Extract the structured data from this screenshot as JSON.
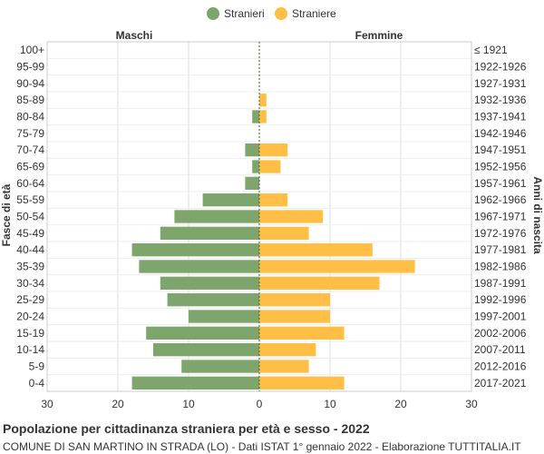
{
  "chart_data": {
    "type": "bar",
    "orientation": "horizontal-butterfly",
    "title": "Popolazione per cittadinanza straniera per età e sesso - 2022",
    "subtitle": "COMUNE DI SAN MARTINO IN STRADA (LO) - Dati ISTAT 1° gennaio 2022 - Elaborazione TUTTITALIA.IT",
    "left_header": "Maschi",
    "right_header": "Femmine",
    "ylabel_left": "Fasce di età",
    "ylabel_right": "Anni di nascita",
    "xlim": [
      -30,
      30
    ],
    "x_ticks": [
      "30",
      "20",
      "10",
      "0",
      "10",
      "20",
      "30"
    ],
    "x_tick_values": [
      -30,
      -20,
      -10,
      0,
      10,
      20,
      30
    ],
    "legend": {
      "position": "top-center",
      "items": [
        "Stranieri",
        "Straniere"
      ]
    },
    "colors": {
      "males": "#7ea56c",
      "females": "#ffbf47",
      "grid": "#dddddd",
      "zero_line": "#4a5a2a"
    },
    "categories": [
      "100+",
      "95-99",
      "90-94",
      "85-89",
      "80-84",
      "75-79",
      "70-74",
      "65-69",
      "60-64",
      "55-59",
      "50-54",
      "45-49",
      "40-44",
      "35-39",
      "30-34",
      "25-29",
      "20-24",
      "15-19",
      "10-14",
      "5-9",
      "0-4"
    ],
    "birth_years": [
      "≤ 1921",
      "1922-1926",
      "1927-1931",
      "1932-1936",
      "1937-1941",
      "1942-1946",
      "1947-1951",
      "1952-1956",
      "1957-1961",
      "1962-1966",
      "1967-1971",
      "1972-1976",
      "1977-1981",
      "1982-1986",
      "1987-1991",
      "1992-1996",
      "1997-2001",
      "2002-2006",
      "2007-2011",
      "2012-2016",
      "2017-2021"
    ],
    "series": [
      {
        "name": "Stranieri",
        "values": [
          0,
          0,
          0,
          0,
          1,
          0,
          2,
          1,
          2,
          8,
          12,
          14,
          18,
          17,
          14,
          13,
          10,
          16,
          15,
          11,
          18
        ]
      },
      {
        "name": "Straniere",
        "values": [
          0,
          0,
          0,
          1,
          1,
          0,
          4,
          3,
          0,
          4,
          9,
          7,
          16,
          22,
          17,
          10,
          10,
          12,
          8,
          7,
          12
        ]
      }
    ]
  }
}
